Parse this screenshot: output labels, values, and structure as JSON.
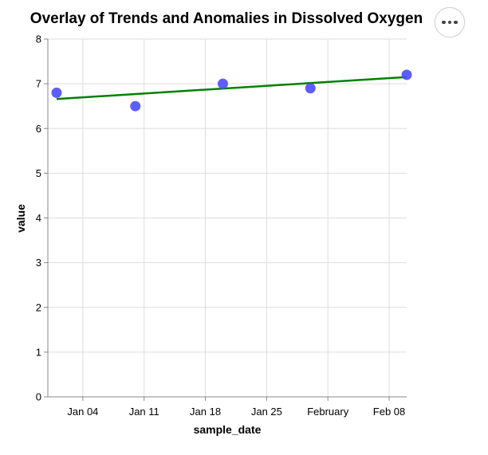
{
  "chart_data": {
    "type": "line+scatter",
    "title": "Overlay of Trends and Anomalies in Dissolved Oxygen",
    "xlabel": "sample_date",
    "ylabel": "value",
    "xlim": [
      "2023-12-31",
      "2024-02-10"
    ],
    "ylim": [
      0,
      8
    ],
    "y_ticks": [
      0,
      1,
      2,
      3,
      4,
      5,
      6,
      7,
      8
    ],
    "x_ticks": [
      {
        "date": "2024-01-04",
        "label": "Jan 04"
      },
      {
        "date": "2024-01-11",
        "label": "Jan 11"
      },
      {
        "date": "2024-01-18",
        "label": "Jan 18"
      },
      {
        "date": "2024-01-25",
        "label": "Jan 25"
      },
      {
        "date": "2024-02-01",
        "label": "February"
      },
      {
        "date": "2024-02-08",
        "label": "Feb 08"
      }
    ],
    "grid": true,
    "points": [
      {
        "x": "2024-01-01",
        "y": 6.8
      },
      {
        "x": "2024-01-10",
        "y": 6.5
      },
      {
        "x": "2024-01-20",
        "y": 7.0
      },
      {
        "x": "2024-01-30",
        "y": 6.9
      },
      {
        "x": "2024-02-10",
        "y": 7.2
      }
    ],
    "trend": [
      {
        "x": "2024-01-01",
        "y": 6.66
      },
      {
        "x": "2024-02-10",
        "y": 7.15
      }
    ],
    "colors": {
      "points": "#4c4cff",
      "trend": "#008000",
      "grid": "#dddddd",
      "axis": "#888888"
    }
  },
  "actions_menu": {
    "icon": "more-horizontal-icon"
  }
}
